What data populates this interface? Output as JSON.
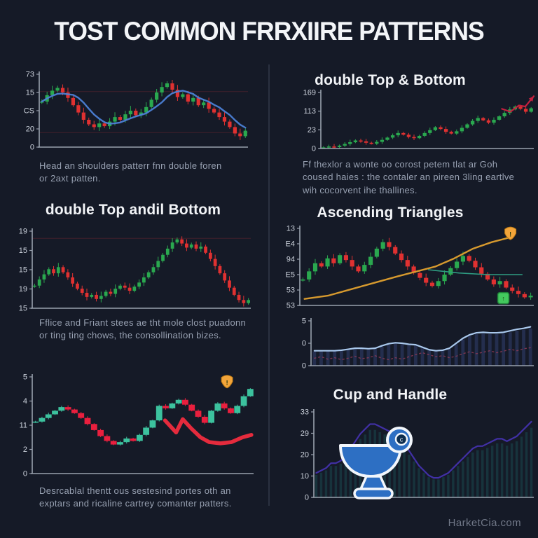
{
  "title": "TOST COMMON FRRXIIRE PATTERNS",
  "watermark": "HarketCia.com",
  "colors": {
    "background": "#151a27",
    "candle_up": "#2aa84f",
    "candle_down": "#e03131",
    "teal_up": "#3cc29e",
    "bright_down": "#ea1f3e",
    "ma_blue": "#4d82da",
    "trend_orange": "#d79a2e",
    "badge_orange": "#f3a53a",
    "badge_green": "#43c95e",
    "line_light_blue": "#a9c8ec",
    "line_purple": "#4130a6",
    "cup_blue": "#2d6fc3",
    "caption_gray": "#97a0b1"
  },
  "panels": {
    "left_top": {
      "caption": "Head an shoulders patterr fnn double foren\nor 2axt patten."
    },
    "left_mid": {
      "heading": "double Top andil Bottom",
      "caption": "Fflice and Friant stees ae tht mole clost puadonn\nor ting ting chows, the consollination bizes."
    },
    "left_bottom": {
      "caption": "Desrcablal thentt ous sestesind portes oth an\nexptars and ricaline cartrey comanter patters."
    },
    "right_top": {
      "heading": "double Top & Bottom",
      "caption": "Ff thexlor a wonte oo corost petem tlat ar Goh\ncoused haies : the contaler an pireen 3ling eartlve\nwih cocorvent ihe thallines."
    },
    "right_mid": {
      "heading": "Ascending Triangles"
    },
    "right_bottom": {
      "heading": "Cup and Handle"
    }
  },
  "chart_data": [
    {
      "id": "head-and-shoulders",
      "type": "candlestick",
      "ylabels": [
        "73",
        "15",
        "CS",
        "20",
        "0"
      ],
      "ylim": [
        0,
        80
      ],
      "margin_left": 30,
      "closes": [
        50,
        57,
        62,
        65,
        60,
        54,
        46,
        38,
        30,
        25,
        22,
        26,
        23,
        28,
        33,
        30,
        36,
        40,
        35,
        38,
        44,
        52,
        60,
        66,
        70,
        63,
        55,
        58,
        50,
        54,
        46,
        49,
        42,
        38,
        33,
        28,
        22,
        15,
        12,
        18
      ],
      "candle_up": "#2aa84f",
      "candle_down": "#e03131",
      "body_frac": 0.7,
      "wick": 0.03,
      "ma": {
        "window": 6,
        "color": "#4d82da",
        "width": 2.4
      },
      "gridlines": {
        "color": "#56222f",
        "values": [
          61,
          16
        ]
      }
    },
    {
      "id": "double-top-left",
      "type": "candlestick",
      "ylabels": [
        "19",
        "15",
        "15",
        "19",
        "15"
      ],
      "ylim": [
        13,
        20.5
      ],
      "margin_left": 30,
      "closes": [
        15.2,
        15.8,
        16.3,
        16.8,
        16.4,
        17.0,
        16.5,
        16.0,
        15.4,
        14.9,
        14.5,
        14.1,
        14.3,
        13.9,
        14.2,
        14.6,
        14.4,
        14.9,
        15.2,
        15.0,
        14.7,
        15.1,
        15.5,
        16.0,
        16.5,
        17.0,
        17.6,
        18.2,
        18.8,
        19.4,
        19.7,
        19.3,
        18.9,
        19.2,
        18.8,
        19.0,
        18.4,
        17.8,
        17.1,
        16.4,
        15.7,
        15.0,
        14.3,
        13.8,
        13.5,
        13.8
      ],
      "candle_up": "#2aa84f",
      "candle_down": "#e03131",
      "body_frac": 0.7,
      "wick": 0.025,
      "gridlines": {
        "color": "#56222f",
        "values": [
          19.8
        ]
      }
    },
    {
      "id": "falling-wedge-left-bottom",
      "type": "candlestick",
      "ylabels": [
        "5",
        "4",
        "11",
        "2",
        "0"
      ],
      "ylim": [
        0,
        8
      ],
      "margin_left": 30,
      "closes": [
        4.3,
        4.6,
        4.9,
        5.2,
        5.5,
        5.3,
        5.0,
        4.6,
        4.1,
        3.6,
        3.1,
        2.7,
        2.4,
        2.6,
        2.9,
        2.7,
        3.2,
        3.8,
        4.4,
        5.6,
        5.4,
        5.8,
        6.1,
        5.7,
        5.2,
        4.7,
        4.2,
        5.2,
        5.8,
        5.4,
        5.0,
        5.6,
        6.4,
        7.0
      ],
      "candle_up": "#3cc29e",
      "candle_down": "#ea1f3e",
      "body_frac": 0.95,
      "wick": 0.008,
      "lines": [
        {
          "color": "#e52b3d",
          "width": 5.5,
          "points": [
            [
              0.6,
              4.4
            ],
            [
              0.65,
              3.4
            ],
            [
              0.68,
              4.5
            ],
            [
              0.72,
              3.7
            ],
            [
              0.76,
              3.0
            ],
            [
              0.8,
              2.6
            ],
            [
              0.85,
              2.5
            ],
            [
              0.9,
              2.6
            ],
            [
              0.95,
              3.0
            ],
            [
              0.99,
              3.2
            ]
          ]
        }
      ],
      "badges": [
        {
          "xfrac": 0.88,
          "value": 7.55,
          "color": "#f3a53a",
          "stroke": "#b97814",
          "glyph": "!"
        }
      ]
    },
    {
      "id": "uptrend-right-top",
      "type": "candlestick",
      "ylabels": [
        "169",
        "113",
        "23",
        "0"
      ],
      "ylim": [
        0,
        195
      ],
      "margin_left": 36,
      "closes": [
        4,
        7,
        5,
        10,
        16,
        22,
        28,
        25,
        20,
        17,
        23,
        30,
        38,
        46,
        54,
        48,
        40,
        36,
        44,
        54,
        64,
        74,
        68,
        58,
        52,
        60,
        72,
        84,
        96,
        106,
        98,
        90,
        100,
        112,
        124,
        136,
        146,
        138,
        128,
        140
      ],
      "candle_up": "#2aa84f",
      "candle_down": "#e03131",
      "body_frac": 0.7,
      "wick": 0.02,
      "lines": [
        {
          "color": "#c5203f",
          "width": 2.2,
          "arrow": true,
          "points": [
            [
              0.85,
              138
            ],
            [
              0.89,
              128
            ],
            [
              0.93,
              150
            ],
            [
              0.96,
              146
            ],
            [
              1.0,
              182
            ]
          ]
        }
      ]
    },
    {
      "id": "ascending-triangle",
      "type": "candlestick",
      "ylabels": [
        "13",
        "E4",
        "94",
        "E5",
        "53",
        "53"
      ],
      "ylim": [
        40,
        135
      ],
      "margin_left": 30,
      "closes": [
        72,
        82,
        92,
        88,
        98,
        92,
        102,
        96,
        88,
        82,
        90,
        100,
        110,
        118,
        112,
        104,
        96,
        88,
        80,
        74,
        68,
        64,
        70,
        78,
        86,
        94,
        101,
        95,
        87,
        79,
        72,
        66,
        70,
        62,
        58,
        54,
        50,
        52
      ],
      "candle_up": "#2aa84f",
      "candle_down": "#e03131",
      "body_frac": 0.7,
      "wick": 0.025,
      "lines": [
        {
          "color": "#d79a2e",
          "width": 2.4,
          "points": [
            [
              0.02,
              48
            ],
            [
              0.12,
              52
            ],
            [
              0.22,
              60
            ],
            [
              0.32,
              68
            ],
            [
              0.42,
              76
            ],
            [
              0.5,
              82
            ],
            [
              0.58,
              88
            ],
            [
              0.66,
              98
            ],
            [
              0.74,
              110
            ],
            [
              0.82,
              118
            ],
            [
              0.9,
              124
            ]
          ]
        },
        {
          "color": "#2e9c82",
          "width": 1.6,
          "points": [
            [
              0.55,
              84
            ],
            [
              0.68,
              80
            ],
            [
              0.8,
              78
            ],
            [
              0.95,
              78
            ]
          ]
        }
      ],
      "badges": [
        {
          "xfrac": 0.9,
          "value": 128,
          "color": "#f3a53a",
          "stroke": "#b97814",
          "glyph": "!"
        },
        {
          "xfrac": 0.87,
          "value": 49,
          "color": "#43c95e",
          "stroke": "#1f8038",
          "glyph": "↑",
          "shape": "square"
        }
      ]
    },
    {
      "id": "volume-line-right-mid",
      "type": "line",
      "ylabels": [
        "5",
        "0",
        "0"
      ],
      "ylim": [
        0,
        9
      ],
      "margin_left": 26,
      "series": [
        {
          "color": "#a9c8ec",
          "width": 2.2,
          "values": [
            3.0,
            3.0,
            3.0,
            3.0,
            3.1,
            3.3,
            3.5,
            3.5,
            3.4,
            3.5,
            4.0,
            4.4,
            4.6,
            4.5,
            4.3,
            4.2,
            3.7,
            3.2,
            3.0,
            3.1,
            3.5,
            4.5,
            5.5,
            6.2,
            6.6,
            6.7,
            6.6,
            6.6,
            6.7,
            7.0,
            7.3,
            7.5,
            7.8
          ]
        },
        {
          "color": "#8c3a56",
          "width": 1.4,
          "dash": "2,4",
          "opacity": 0.85,
          "values": [
            1.5,
            1.8,
            1.3,
            1.6,
            1.2,
            1.5,
            1.9,
            1.4,
            1.6,
            2.0,
            1.5,
            1.2,
            1.6,
            1.3,
            1.8,
            2.2,
            2.6,
            2.2,
            1.8,
            2.0,
            1.6,
            1.9,
            2.4,
            2.8,
            2.4,
            2.7,
            3.0,
            2.6,
            2.9,
            3.3,
            3.0,
            3.4,
            3.6
          ]
        }
      ],
      "bars": {
        "color": "#242e4e",
        "follow": 0,
        "scale": 0.96
      }
    },
    {
      "id": "cup-and-handle",
      "type": "line",
      "ylabels": [
        "33",
        "29",
        "20",
        "10",
        "0"
      ],
      "ylim": [
        0,
        35
      ],
      "margin_left": 30,
      "series": [
        {
          "color": "#4130a6",
          "width": 2.2,
          "values": [
            10,
            11,
            12,
            14,
            14,
            15,
            17,
            20,
            23,
            26,
            28,
            30,
            30,
            29,
            28,
            27,
            26,
            24,
            22,
            19,
            16,
            13,
            11,
            9,
            8,
            8,
            9,
            10,
            12,
            14,
            16,
            18,
            20,
            21,
            21,
            22,
            23,
            24,
            24,
            23,
            24,
            25,
            27,
            29,
            31
          ]
        }
      ],
      "bars": {
        "color": "#17333c",
        "follow": 0,
        "scale": 0.92
      }
    }
  ]
}
